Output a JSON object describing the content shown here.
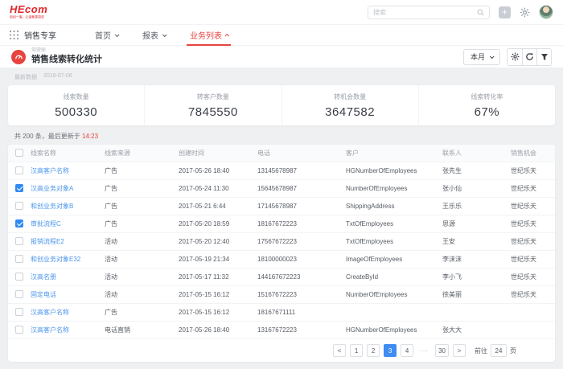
{
  "topbar": {
    "logo": "HEcom",
    "tagline": "和创一客，让销售更简单",
    "search": {
      "placeholder": "搜索"
    }
  },
  "nav": {
    "app_label": "销售专享",
    "items": [
      {
        "label": "首页",
        "active": false
      },
      {
        "label": "报表",
        "active": false
      },
      {
        "label": "业务列表",
        "active": true
      }
    ]
  },
  "page_header": {
    "category": "驾驶舱",
    "title": "销售线索转化统计",
    "period_label": "本月"
  },
  "meta": {
    "latest_label": "最新数据",
    "latest_date": "2018-07-06"
  },
  "stats": [
    {
      "label": "线索数量",
      "value": "500330"
    },
    {
      "label": "转客户数量",
      "value": "7845550"
    },
    {
      "label": "转机会数量",
      "value": "3647582"
    },
    {
      "label": "线索转化率",
      "value": "67%"
    }
  ],
  "table": {
    "summary_prefix": "共 200 条，最后更新于 ",
    "summary_time": "14:23",
    "columns": [
      "线索名称",
      "线索来源",
      "创建时间",
      "电话",
      "客户",
      "联系人",
      "销售机会"
    ],
    "rows": [
      {
        "checked": false,
        "name": "汉高客户名称",
        "source": "广告",
        "created": "2017-05-26 18:40",
        "phone": "13145678987",
        "customer": "HGNumberOfEmployees",
        "contact": "张先生",
        "opportunity": "世纪乐天"
      },
      {
        "checked": true,
        "name": "汉高业务对象A",
        "source": "广告",
        "created": "2017-05-24 11:30",
        "phone": "15645678987",
        "customer": "NumberOfEmployees",
        "contact": "张小仙",
        "opportunity": "世纪乐天"
      },
      {
        "checked": false,
        "name": "和创业务对象B",
        "source": "广告",
        "created": "2017-05-21 6:44",
        "phone": "17145678987",
        "customer": "ShippingAddress",
        "contact": "王乐乐",
        "opportunity": "世纪乐天"
      },
      {
        "checked": true,
        "name": "审批流程C",
        "source": "广告",
        "created": "2017-05-20 18:59",
        "phone": "18167672223",
        "customer": "TxtOfEmployees",
        "contact": "思源",
        "opportunity": "世纪乐天"
      },
      {
        "checked": false,
        "name": "报销流程E2",
        "source": "活动",
        "created": "2017-05-20 12:40",
        "phone": "17567672223",
        "customer": "TxtOfEmployees",
        "contact": "王安",
        "opportunity": "世纪乐天"
      },
      {
        "checked": false,
        "name": "和创业务对象E32",
        "source": "活动",
        "created": "2017-05-19 21:34",
        "phone": "18100000023",
        "customer": "ImageOfEmployees",
        "contact": "李沫沫",
        "opportunity": "世纪乐天"
      },
      {
        "checked": false,
        "name": "汉高名册",
        "source": "活动",
        "created": "2017-05-17 11:32",
        "phone": "144167672223",
        "customer": "CreateById",
        "contact": "李小飞",
        "opportunity": "世纪乐天"
      },
      {
        "checked": false,
        "name": "固定电话",
        "source": "活动",
        "created": "2017-05-15 16:12",
        "phone": "15167672223",
        "customer": "NumberOfEmployees",
        "contact": "徐美丽",
        "opportunity": "世纪乐天"
      },
      {
        "checked": false,
        "name": "汉高客户名称",
        "source": "广告",
        "created": "2017-05-15 16:12",
        "phone": "18167671111",
        "customer": "",
        "contact": "",
        "opportunity": ""
      },
      {
        "checked": false,
        "name": "汉高客户名称",
        "source": "电话直销",
        "created": "2017-05-26 18:40",
        "phone": "13167672223",
        "customer": "HGNumberOfEmployees",
        "contact": "张大大",
        "opportunity": ""
      }
    ]
  },
  "pagination": {
    "buttons": [
      {
        "label": "<",
        "type": "prev"
      },
      {
        "label": "1"
      },
      {
        "label": "2"
      },
      {
        "label": "3",
        "active": true
      },
      {
        "label": "4"
      },
      {
        "label": "···",
        "type": "dots"
      },
      {
        "label": "30"
      },
      {
        "label": ">",
        "type": "next"
      }
    ],
    "goto_label": "前往",
    "goto_value": "24",
    "unit_label": "页"
  },
  "colors": {
    "accent_red": "#e8433f",
    "logo_red": "#e0252a",
    "link_blue": "#4e97eb",
    "active_blue": "#3f8cf3"
  }
}
